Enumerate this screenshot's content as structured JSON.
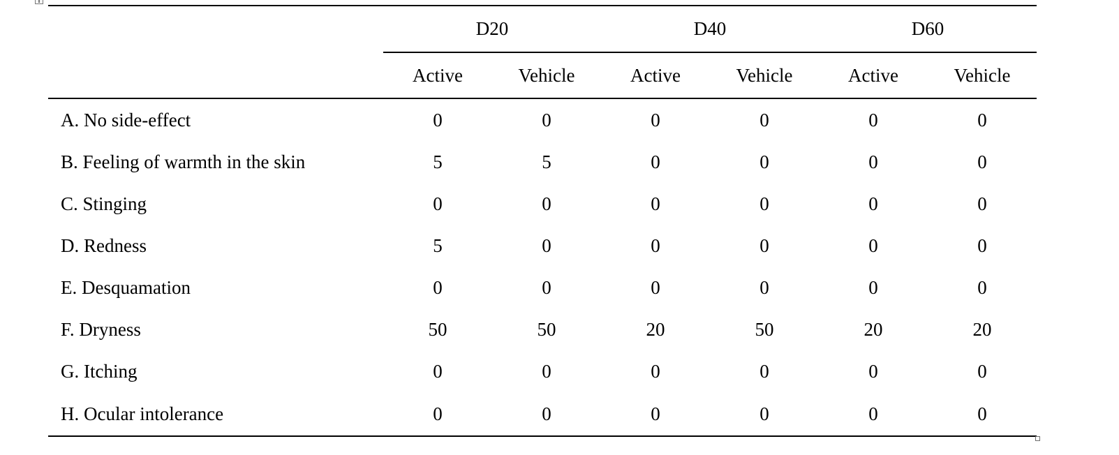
{
  "table": {
    "groups": [
      "D20",
      "D40",
      "D60"
    ],
    "subheaders": [
      "Active",
      "Vehicle",
      "Active",
      "Vehicle",
      "Active",
      "Vehicle"
    ],
    "rows": [
      {
        "label": "A. No side-effect",
        "values": [
          "0",
          "0",
          "0",
          "0",
          "0",
          "0"
        ]
      },
      {
        "label": "B. Feeling of warmth in the skin",
        "values": [
          "5",
          "5",
          "0",
          "0",
          "0",
          "0"
        ]
      },
      {
        "label": "C. Stinging",
        "values": [
          "0",
          "0",
          "0",
          "0",
          "0",
          "0"
        ]
      },
      {
        "label": "D. Redness",
        "values": [
          "5",
          "0",
          "0",
          "0",
          "0",
          "0"
        ]
      },
      {
        "label": "E. Desquamation",
        "values": [
          "0",
          "0",
          "0",
          "0",
          "0",
          "0"
        ]
      },
      {
        "label": "F. Dryness",
        "values": [
          "50",
          "50",
          "20",
          "50",
          "20",
          "20"
        ]
      },
      {
        "label": "G. Itching",
        "values": [
          "0",
          "0",
          "0",
          "0",
          "0",
          "0"
        ]
      },
      {
        "label": "H. Ocular intolerance",
        "values": [
          "0",
          "0",
          "0",
          "0",
          "0",
          "0"
        ]
      }
    ]
  }
}
